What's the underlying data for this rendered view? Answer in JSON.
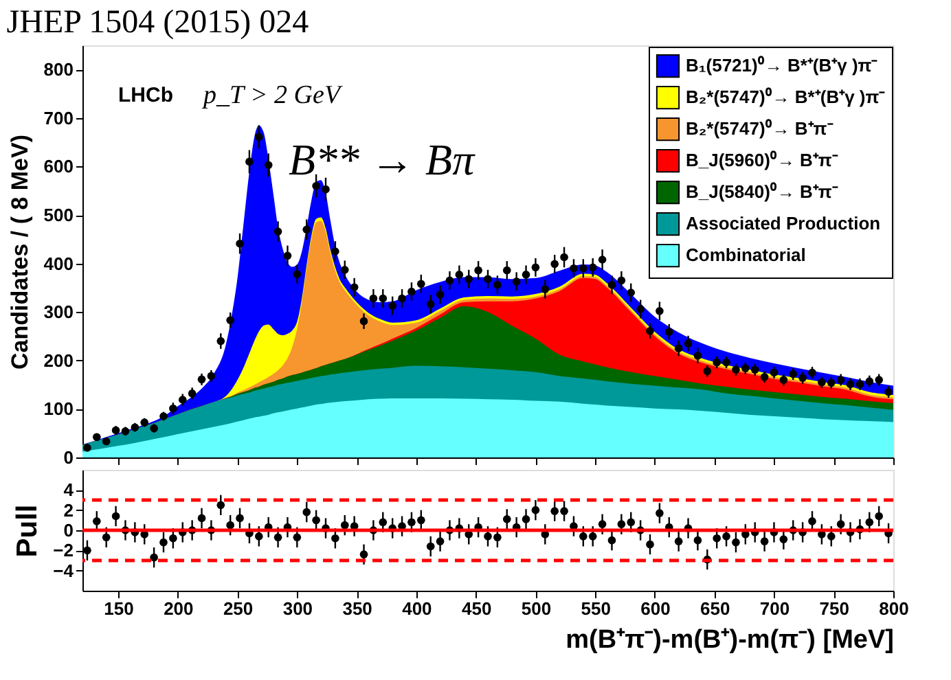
{
  "chart_data": [
    {
      "type": "area",
      "title": "JHEP 1504 (2015) 024",
      "ylabel": "Candidates / ( 8 MeV)",
      "annotations": [
        "LHCb",
        "p_T > 2 GeV",
        "B** → Bπ"
      ],
      "x": [
        120,
        130,
        140,
        150,
        160,
        170,
        180,
        190,
        200,
        210,
        220,
        230,
        240,
        245,
        250,
        255,
        260,
        265,
        268,
        272,
        276,
        280,
        284,
        288,
        292,
        296,
        300,
        304,
        308,
        312,
        316,
        320,
        324,
        328,
        332,
        336,
        340,
        350,
        360,
        370,
        380,
        400,
        420,
        440,
        460,
        480,
        500,
        520,
        540,
        550,
        560,
        580,
        600,
        620,
        640,
        660,
        680,
        700,
        720,
        740,
        760,
        780,
        800
      ],
      "series": [
        {
          "name": "B₁(5721)⁰→ B*⁺(B⁺γ )π⁻",
          "color": "#0000ff",
          "values": [
            27,
            34,
            42,
            50,
            58,
            66,
            75,
            88,
            106,
            122,
            142,
            172,
            230,
            290,
            370,
            480,
            590,
            670,
            685,
            670,
            615,
            545,
            475,
            430,
            402,
            393,
            398,
            425,
            475,
            530,
            568,
            572,
            545,
            488,
            435,
            400,
            378,
            342,
            325,
            320,
            322,
            345,
            362,
            372,
            372,
            368,
            370,
            385,
            398,
            396,
            382,
            337,
            290,
            258,
            235,
            218,
            205,
            194,
            184,
            175,
            166,
            156,
            148
          ]
        },
        {
          "name": "B₂*(5747)⁰→ B*⁺(B⁺γ )π⁻",
          "color": "#ffff00",
          "values": [
            26,
            33,
            40,
            47,
            55,
            63,
            71,
            80,
            89,
            98,
            106,
            114,
            126,
            140,
            160,
            185,
            215,
            245,
            260,
            272,
            274,
            265,
            255,
            252,
            255,
            262,
            280,
            328,
            397,
            457,
            492,
            495,
            472,
            427,
            392,
            366,
            351,
            320,
            298,
            285,
            278,
            283,
            307,
            330,
            333,
            332,
            337,
            352,
            379,
            377,
            359,
            309,
            259,
            223,
            204,
            191,
            181,
            171,
            164,
            156,
            149,
            135,
            129
          ]
        },
        {
          "name": "B₂*(5747)⁰→ B⁺π⁻",
          "color": "#f7962f",
          "values": [
            26,
            33,
            40,
            47,
            55,
            63,
            71,
            80,
            89,
            98,
            106,
            114,
            123,
            127,
            134,
            139,
            145,
            151,
            155,
            160,
            166,
            172,
            180,
            190,
            205,
            228,
            265,
            320,
            390,
            450,
            485,
            488,
            465,
            420,
            385,
            360,
            345,
            315,
            293,
            280,
            273,
            278,
            302,
            325,
            328,
            327,
            332,
            347,
            374,
            372,
            354,
            304,
            254,
            218,
            199,
            186,
            176,
            166,
            159,
            151,
            144,
            130,
            124
          ]
        },
        {
          "name": "B_J(5960)⁰→ B⁺π⁻",
          "color": "#ff0000",
          "values": [
            26,
            33,
            40,
            47,
            55,
            63,
            71,
            80,
            89,
            98,
            106,
            114,
            122,
            126,
            131,
            135,
            139,
            144,
            146,
            150,
            153,
            156,
            160,
            163,
            167,
            170,
            172,
            175,
            178,
            181,
            184,
            188,
            191,
            194,
            197,
            200,
            203,
            213,
            224,
            234,
            245,
            267,
            295,
            320,
            322,
            322,
            328,
            343,
            370,
            368,
            350,
            300,
            250,
            214,
            195,
            182,
            172,
            162,
            155,
            147,
            140,
            126,
            120
          ]
        },
        {
          "name": "B_J(5840)⁰→ B⁺π⁻",
          "color": "#006600",
          "values": [
            26,
            33,
            40,
            47,
            55,
            63,
            71,
            80,
            89,
            98,
            106,
            114,
            122,
            126,
            131,
            135,
            139,
            144,
            146,
            150,
            153,
            156,
            160,
            163,
            167,
            170,
            172,
            175,
            178,
            181,
            184,
            188,
            191,
            194,
            197,
            200,
            203,
            212,
            222,
            231,
            241,
            262,
            288,
            312,
            300,
            272,
            245,
            212,
            198,
            192,
            186,
            176,
            168,
            160,
            152,
            146,
            140,
            135,
            130,
            125,
            121,
            116,
            112
          ]
        },
        {
          "name": "Associated Production",
          "color": "#009999",
          "values": [
            26,
            33,
            40,
            47,
            55,
            63,
            71,
            80,
            89,
            98,
            106,
            114,
            121,
            124,
            128,
            131,
            134,
            138,
            140,
            142,
            145,
            147,
            150,
            152,
            154,
            156,
            158,
            160,
            162,
            164,
            166,
            168,
            169,
            171,
            172,
            174,
            175,
            178,
            181,
            183,
            185,
            189,
            188,
            186,
            183,
            180,
            176,
            168,
            163,
            160,
            157,
            152,
            148,
            144,
            140,
            132,
            127,
            122,
            117,
            112,
            108,
            103,
            98
          ]
        },
        {
          "name": "Combinatorial",
          "color": "#66ffff",
          "values": [
            12,
            16,
            20,
            24,
            28,
            33,
            38,
            43,
            48,
            53,
            58,
            63,
            68,
            71,
            74,
            77,
            80,
            83,
            84,
            86,
            88,
            91,
            93,
            95,
            97,
            99,
            101,
            103,
            105,
            107,
            109,
            110,
            112,
            113,
            114,
            115,
            116,
            118,
            120,
            121,
            122,
            122,
            122,
            121,
            120,
            119,
            117,
            115,
            111,
            109,
            107,
            104,
            101,
            99,
            96,
            92,
            88,
            85,
            82,
            79,
            77,
            75,
            73
          ]
        },
        {
          "type": "scatter",
          "color": "#000000",
          "marker": "circle",
          "x": [
            124,
            132,
            140,
            148,
            156,
            164,
            172,
            180,
            188,
            196,
            204,
            212,
            220,
            228,
            236,
            244,
            252,
            260,
            268,
            276,
            284,
            292,
            300,
            308,
            316,
            324,
            332,
            340,
            348,
            356,
            364,
            372,
            380,
            388,
            396,
            404,
            412,
            420,
            428,
            436,
            444,
            452,
            460,
            468,
            476,
            484,
            492,
            500,
            508,
            516,
            524,
            532,
            540,
            548,
            556,
            564,
            572,
            580,
            588,
            596,
            604,
            612,
            620,
            628,
            636,
            644,
            652,
            660,
            668,
            676,
            684,
            692,
            700,
            708,
            716,
            724,
            732,
            740,
            748,
            756,
            764,
            772,
            780,
            788,
            796
          ],
          "values": [
            20,
            42,
            33,
            56,
            54,
            62,
            72,
            60,
            85,
            101,
            119,
            132,
            161,
            168,
            240,
            283,
            441,
            610,
            661,
            603,
            466,
            416,
            378,
            470,
            560,
            553,
            425,
            387,
            351,
            281,
            328,
            328,
            313,
            328,
            342,
            358,
            316,
            336,
            365,
            377,
            368,
            386,
            368,
            356,
            386,
            363,
            377,
            392,
            347,
            399,
            413,
            390,
            390,
            392,
            408,
            356,
            365,
            340,
            306,
            261,
            302,
            259,
            225,
            235,
            210,
            178,
            196,
            196,
            181,
            184,
            181,
            166,
            175,
            160,
            172,
            164,
            175,
            155,
            154,
            160,
            151,
            151,
            157,
            160,
            135
          ],
          "errors": [
            7,
            7,
            7,
            9,
            9,
            9,
            9,
            9,
            9,
            12,
            12,
            12,
            12,
            12,
            16,
            16,
            21,
            24,
            24,
            24,
            21,
            21,
            19,
            21,
            24,
            24,
            21,
            19,
            19,
            16,
            19,
            19,
            19,
            19,
            19,
            19,
            19,
            19,
            19,
            19,
            19,
            19,
            19,
            19,
            19,
            19,
            19,
            19,
            19,
            19,
            21,
            19,
            19,
            19,
            21,
            19,
            19,
            19,
            19,
            16,
            19,
            16,
            16,
            16,
            16,
            12,
            12,
            12,
            12,
            12,
            12,
            12,
            12,
            12,
            12,
            12,
            12,
            12,
            12,
            12,
            12,
            12,
            12,
            12,
            12
          ]
        }
      ],
      "xlim": [
        120,
        800
      ],
      "xticks": [
        150,
        200,
        250,
        300,
        350,
        400,
        450,
        500,
        550,
        600,
        650,
        700,
        750,
        800
      ],
      "ylim": [
        0,
        850
      ],
      "yticks": [
        0,
        100,
        200,
        300,
        400,
        500,
        600,
        700,
        800
      ],
      "tick_labels": "y",
      "legend": "top right",
      "grid": false
    },
    {
      "type": "scatter",
      "ylabel": "Pull",
      "xlabel": "m(B⁺π⁻)-m(B⁺)-m(π⁻) [MeV]",
      "series": [
        {
          "color": "#000000",
          "marker": "circle",
          "x": [
            124,
            132,
            140,
            148,
            156,
            164,
            172,
            180,
            188,
            196,
            204,
            212,
            220,
            228,
            236,
            244,
            252,
            260,
            268,
            276,
            284,
            292,
            300,
            308,
            316,
            324,
            332,
            340,
            348,
            356,
            364,
            372,
            380,
            388,
            396,
            404,
            412,
            420,
            428,
            436,
            444,
            452,
            460,
            468,
            476,
            484,
            492,
            500,
            508,
            516,
            524,
            532,
            540,
            548,
            556,
            564,
            572,
            580,
            588,
            596,
            604,
            612,
            620,
            628,
            636,
            644,
            652,
            660,
            668,
            676,
            684,
            692,
            700,
            708,
            716,
            724,
            732,
            740,
            748,
            756,
            764,
            772,
            780,
            788,
            796
          ],
          "values": [
            -2.0,
            0.9,
            -0.7,
            1.4,
            0.0,
            -0.2,
            -0.4,
            -2.7,
            -1.2,
            -0.8,
            -0.2,
            0.0,
            1.2,
            0.0,
            2.5,
            0.5,
            1.2,
            -0.3,
            -0.6,
            0.3,
            -0.7,
            0.3,
            -0.7,
            1.8,
            1.0,
            0.2,
            -0.8,
            0.5,
            0.4,
            -2.4,
            0.0,
            0.8,
            0.2,
            0.4,
            0.8,
            1.0,
            -1.6,
            -1.1,
            0.0,
            0.2,
            -0.4,
            0.3,
            -0.6,
            -0.7,
            1.1,
            0.3,
            1.1,
            2.0,
            -0.4,
            1.9,
            1.9,
            0.4,
            -0.6,
            -0.6,
            0.6,
            -1.0,
            0.6,
            0.8,
            0.0,
            -1.4,
            1.7,
            0.3,
            -1.1,
            0.2,
            -1.0,
            -2.9,
            -0.8,
            -0.6,
            -1.2,
            -0.4,
            -0.2,
            -1.1,
            -0.2,
            -0.9,
            0.0,
            -0.2,
            0.9,
            -0.4,
            -0.6,
            0.6,
            -0.2,
            0.1,
            0.8,
            1.4,
            -0.3
          ],
          "errors": [
            1,
            1,
            1,
            1,
            1,
            1,
            1,
            1,
            1,
            1,
            1,
            1,
            1,
            1,
            1,
            1,
            1,
            1,
            1,
            1,
            1,
            1,
            1,
            1,
            1,
            1,
            1,
            1,
            1,
            1,
            1,
            1,
            1,
            1,
            1,
            1,
            1,
            1,
            1,
            1,
            1,
            1,
            1,
            1,
            1,
            1,
            1,
            1,
            1,
            1,
            1,
            1,
            1,
            1,
            1,
            1,
            1,
            1,
            1,
            1,
            1,
            1,
            1,
            1,
            1,
            1,
            1,
            1,
            1,
            1,
            1,
            1,
            1,
            1,
            1,
            1,
            1,
            1,
            1,
            1,
            1,
            1,
            1,
            1,
            1
          ]
        }
      ],
      "ref_lines": [
        {
          "axis": "y",
          "value": 0,
          "color": "#ff0000",
          "line_style": "solid"
        },
        {
          "axis": "y",
          "value": 3,
          "color": "#ff0000",
          "line_style": "dashed"
        },
        {
          "axis": "y",
          "value": -3,
          "color": "#ff0000",
          "line_style": "dashed"
        }
      ],
      "xlim": [
        120,
        800
      ],
      "xticks": [
        150,
        200,
        250,
        300,
        350,
        400,
        450,
        500,
        550,
        600,
        650,
        700,
        750,
        800
      ],
      "ylim": [
        -6,
        6
      ],
      "yticks": [
        -4,
        -2,
        0,
        2,
        4
      ],
      "grid": false
    }
  ]
}
